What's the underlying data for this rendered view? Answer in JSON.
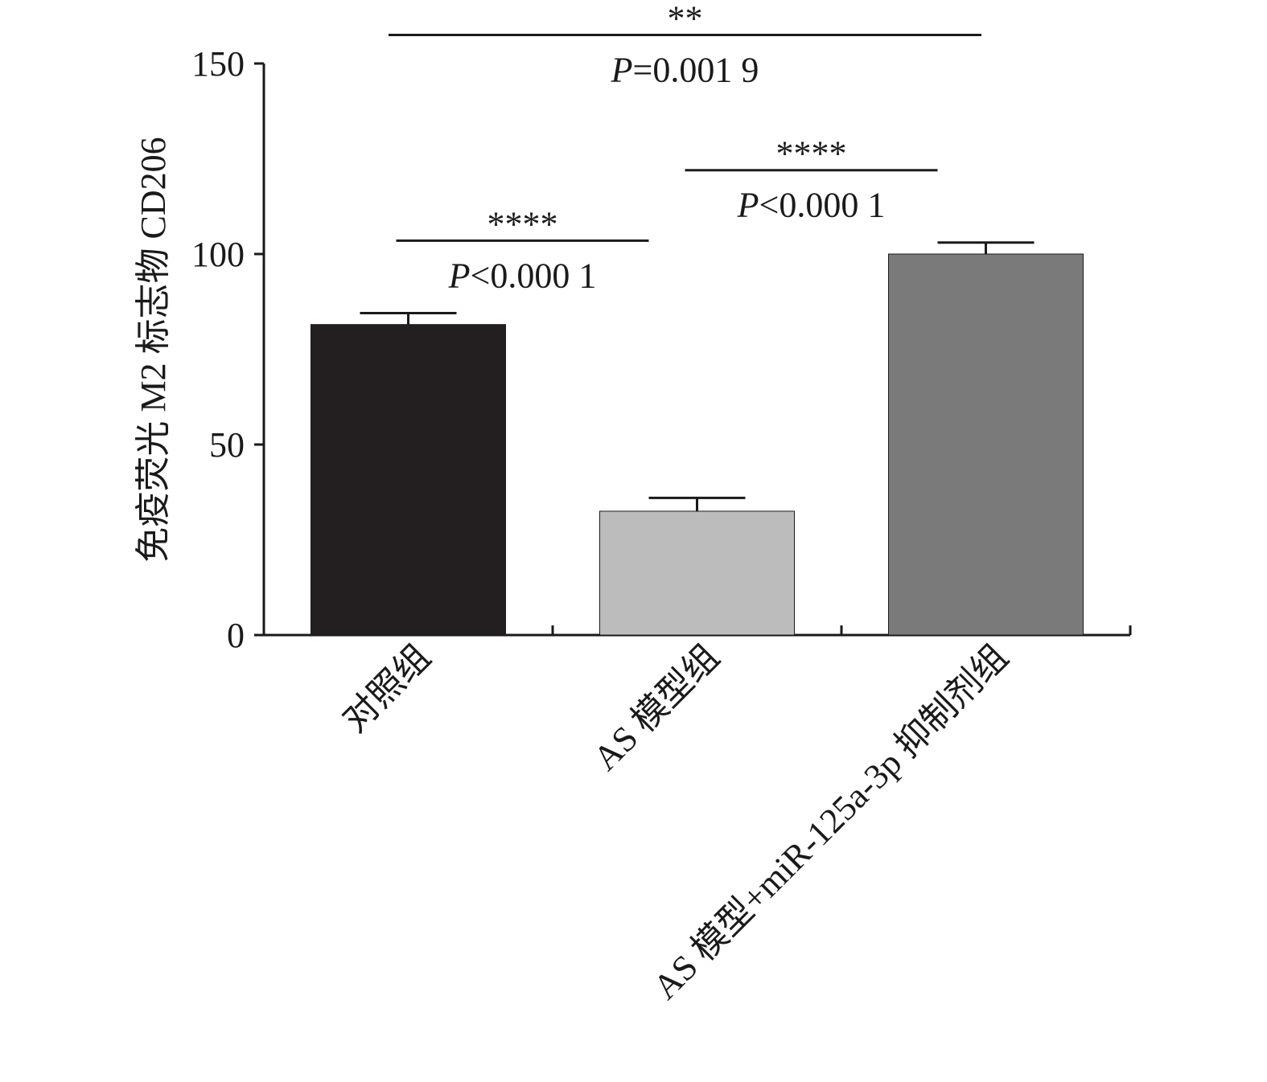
{
  "chart_data": {
    "type": "bar",
    "title": "",
    "xlabel": "",
    "ylabel": "免疫荧光 M2 标志物 CD206",
    "ylim": [
      0,
      150
    ],
    "yticks": [
      0,
      50,
      100,
      150
    ],
    "grid": false,
    "legend": "none",
    "categories": [
      "对照组",
      "AS 模型组",
      "AS 模型+miR-125a-3p 抑制剂组"
    ],
    "values": [
      81.5,
      32.5,
      100
    ],
    "errors": [
      3.0,
      3.5,
      3.0
    ],
    "colors": [
      "#231f20",
      "#bcbcbc",
      "#7a7a7a"
    ],
    "significance": [
      {
        "from": 0,
        "to": 1,
        "y": 103.5,
        "stars": "****",
        "p_prefix": "P",
        "p_value": "<0.000 1"
      },
      {
        "from": 1,
        "to": 2,
        "y": 122,
        "stars": "****",
        "p_prefix": "P",
        "p_value": "<0.000 1"
      },
      {
        "from": 0,
        "to": 2,
        "y": 157.5,
        "stars": "**",
        "p_prefix": "P",
        "p_value": "=0.001 9"
      }
    ]
  }
}
